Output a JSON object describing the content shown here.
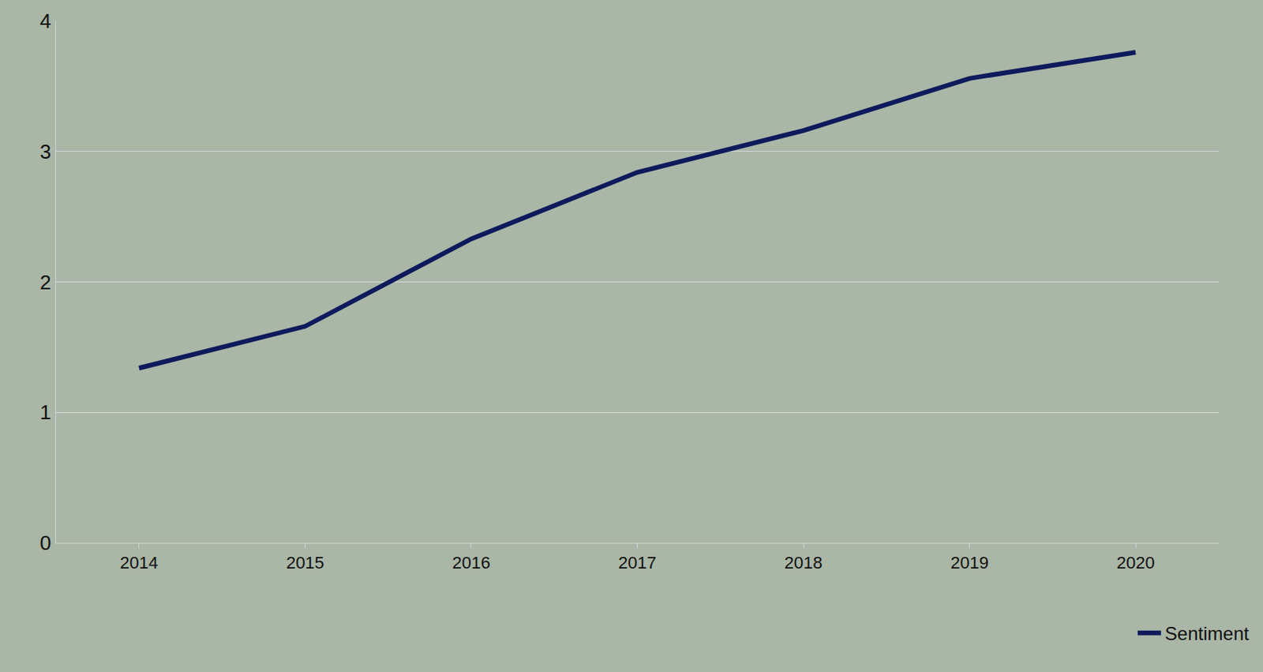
{
  "chart_data": {
    "type": "line",
    "categories": [
      "2014",
      "2015",
      "2016",
      "2017",
      "2018",
      "2019",
      "2020"
    ],
    "series": [
      {
        "name": "Sentiment",
        "color": "#0d1a5c",
        "values": [
          1.34,
          1.66,
          2.33,
          2.84,
          3.16,
          3.56,
          3.76
        ]
      }
    ],
    "ylim": [
      0,
      4
    ],
    "yticks": [
      0,
      1,
      2,
      3,
      4
    ],
    "grid": true,
    "legend": "bottom right"
  }
}
